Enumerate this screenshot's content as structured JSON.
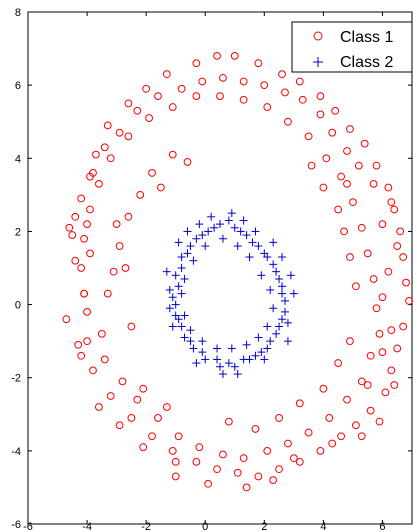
{
  "chart_data": {
    "type": "scatter",
    "title": "",
    "xlabel": "",
    "ylabel": "",
    "xlim": [
      -6,
      7
    ],
    "ylim": [
      -6,
      8
    ],
    "xticks": [
      "-6",
      "-4",
      "-2",
      "0",
      "2",
      "4",
      "6"
    ],
    "yticks": [
      "-6",
      "-4",
      "-2",
      "0",
      "2",
      "4",
      "6",
      "8"
    ],
    "grid": false,
    "legend_position": "top-right",
    "series": [
      {
        "name": "Class 1",
        "marker": "circle",
        "color": "#ff0000",
        "points": [
          [
            -4.1,
            0.3
          ],
          [
            -3.9,
            1.4
          ],
          [
            -4.6,
            2.1
          ],
          [
            -4.4,
            2.4
          ],
          [
            -3.9,
            3.5
          ],
          [
            -3.7,
            4.1
          ],
          [
            -3.3,
            4.9
          ],
          [
            -2.6,
            5.5
          ],
          [
            -2.0,
            5.9
          ],
          [
            -1.3,
            6.3
          ],
          [
            -0.3,
            6.6
          ],
          [
            0.4,
            6.8
          ],
          [
            1.0,
            6.8
          ],
          [
            1.8,
            6.6
          ],
          [
            2.6,
            6.3
          ],
          [
            3.2,
            6.1
          ],
          [
            3.9,
            5.7
          ],
          [
            4.4,
            5.3
          ],
          [
            4.9,
            4.8
          ],
          [
            5.4,
            4.4
          ],
          [
            5.8,
            3.8
          ],
          [
            6.2,
            3.2
          ],
          [
            6.4,
            2.6
          ],
          [
            6.6,
            2.0
          ],
          [
            6.7,
            1.3
          ],
          [
            6.8,
            0.6
          ],
          [
            6.9,
            0.1
          ],
          [
            6.7,
            -0.6
          ],
          [
            6.5,
            -1.2
          ],
          [
            6.3,
            -1.8
          ],
          [
            6.1,
            -2.4
          ],
          [
            5.6,
            -2.9
          ],
          [
            5.1,
            -3.3
          ],
          [
            4.6,
            -3.6
          ],
          [
            3.9,
            -4.0
          ],
          [
            3.2,
            -4.3
          ],
          [
            2.5,
            -4.5
          ],
          [
            1.8,
            -4.7
          ],
          [
            1.1,
            -4.6
          ],
          [
            0.4,
            -4.5
          ],
          [
            -0.3,
            -4.3
          ],
          [
            -1.1,
            -4.0
          ],
          [
            -1.8,
            -3.6
          ],
          [
            -2.5,
            -3.1
          ],
          [
            -3.2,
            -2.5
          ],
          [
            -3.8,
            -1.8
          ],
          [
            -4.3,
            -1.1
          ],
          [
            -4.7,
            -0.4
          ],
          [
            -4.2,
            -1.4
          ],
          [
            -3.6,
            -2.8
          ],
          [
            -2.9,
            -3.3
          ],
          [
            -2.1,
            -3.9
          ],
          [
            -1.0,
            -4.7
          ],
          [
            0.1,
            -4.9
          ],
          [
            1.4,
            -5.0
          ],
          [
            2.3,
            -4.8
          ],
          [
            3.0,
            -4.2
          ],
          [
            4.3,
            -3.8
          ],
          [
            5.3,
            -3.6
          ],
          [
            5.9,
            -3.2
          ],
          [
            6.4,
            -2.2
          ],
          [
            6.0,
            -1.3
          ],
          [
            6.3,
            -0.7
          ],
          [
            6.0,
            0.2
          ],
          [
            6.2,
            0.9
          ],
          [
            6.5,
            1.6
          ],
          [
            6.0,
            2.2
          ],
          [
            6.3,
            2.8
          ],
          [
            5.7,
            3.3
          ],
          [
            5.2,
            3.8
          ],
          [
            4.8,
            4.2
          ],
          [
            4.3,
            4.7
          ],
          [
            3.9,
            5.2
          ],
          [
            3.3,
            5.6
          ],
          [
            2.7,
            5.8
          ],
          [
            2.0,
            6.0
          ],
          [
            1.3,
            6.1
          ],
          [
            0.6,
            6.2
          ],
          [
            -0.1,
            6.1
          ],
          [
            -0.8,
            5.9
          ],
          [
            -1.6,
            5.7
          ],
          [
            -2.3,
            5.3
          ],
          [
            -2.9,
            4.7
          ],
          [
            -3.4,
            4.3
          ],
          [
            -3.8,
            3.6
          ],
          [
            -4.2,
            2.9
          ],
          [
            -4.5,
            1.9
          ],
          [
            -4.4,
            1.2
          ],
          [
            -4.0,
            -0.2
          ],
          [
            -4.0,
            -1.0
          ],
          [
            -3.4,
            -1.5
          ],
          [
            -2.8,
            -2.1
          ],
          [
            -2.3,
            -2.6
          ],
          [
            -1.6,
            -3.1
          ],
          [
            -0.9,
            -3.6
          ],
          [
            -0.2,
            -3.9
          ],
          [
            0.6,
            -4.1
          ],
          [
            1.3,
            -4.2
          ],
          [
            2.1,
            -4.0
          ],
          [
            2.8,
            -3.8
          ],
          [
            3.5,
            -3.5
          ],
          [
            4.2,
            -3.1
          ],
          [
            4.8,
            -2.6
          ],
          [
            5.3,
            -2.1
          ],
          [
            5.6,
            -1.4
          ],
          [
            5.9,
            -0.8
          ],
          [
            5.8,
            -0.1
          ],
          [
            5.7,
            0.7
          ],
          [
            5.5,
            1.4
          ],
          [
            5.3,
            2.1
          ],
          [
            5.0,
            2.8
          ],
          [
            4.6,
            3.5
          ],
          [
            4.1,
            4.0
          ],
          [
            3.5,
            4.6
          ],
          [
            2.8,
            5.0
          ],
          [
            2.1,
            5.4
          ],
          [
            1.3,
            5.6
          ],
          [
            0.5,
            5.7
          ],
          [
            -0.3,
            5.7
          ],
          [
            -1.1,
            5.4
          ],
          [
            -1.9,
            5.1
          ],
          [
            -2.6,
            4.6
          ],
          [
            -3.2,
            4.0
          ],
          [
            -3.6,
            3.3
          ],
          [
            -3.9,
            2.6
          ],
          [
            -4.1,
            1.8
          ],
          [
            -4.2,
            1.0
          ],
          [
            -4.1,
            0.3
          ],
          [
            -3.3,
            0.3
          ],
          [
            -3.1,
            0.9
          ],
          [
            -2.9,
            1.6
          ],
          [
            -2.6,
            2.4
          ],
          [
            -2.2,
            3.0
          ],
          [
            -1.8,
            3.6
          ],
          [
            -1.1,
            4.1
          ],
          [
            -2.5,
            -0.6
          ],
          [
            -2.1,
            -2.3
          ],
          [
            -1.3,
            -2.8
          ],
          [
            4.0,
            -2.3
          ],
          [
            4.5,
            -1.6
          ],
          [
            4.9,
            -1.0
          ],
          [
            5.1,
            0.5
          ],
          [
            4.9,
            1.3
          ],
          [
            4.7,
            2.0
          ],
          [
            4.5,
            2.6
          ],
          [
            4.0,
            3.2
          ],
          [
            3.6,
            3.8
          ],
          [
            -2.7,
            1.0
          ],
          [
            -3.0,
            2.2
          ],
          [
            -0.6,
            3.9
          ],
          [
            0.8,
            -3.2
          ],
          [
            1.7,
            -3.4
          ],
          [
            2.5,
            -3.1
          ],
          [
            3.2,
            -2.7
          ],
          [
            -3.5,
            -0.8
          ],
          [
            -4.0,
            2.2
          ],
          [
            -1.5,
            3.2
          ],
          [
            4.8,
            3.3
          ],
          [
            5.5,
            -2.2
          ],
          [
            -1.0,
            -4.3
          ]
        ]
      },
      {
        "name": "Class 2",
        "marker": "plus",
        "color": "#0000cc",
        "points": [
          [
            -1.0,
            0.0
          ],
          [
            -0.9,
            0.5
          ],
          [
            -0.8,
            1.0
          ],
          [
            -0.6,
            1.4
          ],
          [
            -0.3,
            1.8
          ],
          [
            0.1,
            2.0
          ],
          [
            0.5,
            2.2
          ],
          [
            1.0,
            2.1
          ],
          [
            1.4,
            1.9
          ],
          [
            1.8,
            1.6
          ],
          [
            2.1,
            1.3
          ],
          [
            2.4,
            0.9
          ],
          [
            2.6,
            0.5
          ],
          [
            2.7,
            0.1
          ],
          [
            2.6,
            -0.4
          ],
          [
            2.4,
            -0.8
          ],
          [
            2.1,
            -1.2
          ],
          [
            1.7,
            -1.4
          ],
          [
            1.3,
            -1.5
          ],
          [
            0.8,
            -1.6
          ],
          [
            0.4,
            -1.5
          ],
          [
            -0.1,
            -1.3
          ],
          [
            -0.5,
            -1.0
          ],
          [
            -0.8,
            -0.6
          ],
          [
            -1.0,
            -0.3
          ],
          [
            -1.1,
            0.2
          ],
          [
            -1.0,
            0.8
          ],
          [
            -0.8,
            1.3
          ],
          [
            -0.5,
            1.6
          ],
          [
            -0.1,
            1.9
          ],
          [
            0.3,
            2.1
          ],
          [
            0.8,
            2.3
          ],
          [
            1.2,
            2.0
          ],
          [
            1.6,
            1.7
          ],
          [
            2.0,
            1.4
          ],
          [
            2.3,
            1.1
          ],
          [
            2.5,
            0.7
          ],
          [
            2.6,
            0.3
          ],
          [
            2.7,
            -0.2
          ],
          [
            2.5,
            -0.6
          ],
          [
            2.2,
            -1.0
          ],
          [
            1.9,
            -1.3
          ],
          [
            1.5,
            -1.5
          ],
          [
            1.0,
            -1.7
          ],
          [
            0.5,
            -1.7
          ],
          [
            0.0,
            -1.5
          ],
          [
            -0.4,
            -1.2
          ],
          [
            -0.7,
            -0.9
          ],
          [
            -0.9,
            -0.4
          ],
          [
            -1.2,
            0.4
          ],
          [
            -0.7,
            0.7
          ],
          [
            -0.4,
            1.2
          ],
          [
            0.0,
            1.6
          ],
          [
            0.6,
            1.8
          ],
          [
            1.1,
            1.6
          ],
          [
            1.5,
            1.3
          ],
          [
            1.9,
            0.8
          ],
          [
            2.2,
            0.4
          ],
          [
            2.3,
            -0.1
          ],
          [
            2.1,
            -0.6
          ],
          [
            1.8,
            -0.9
          ],
          [
            1.4,
            -1.1
          ],
          [
            0.9,
            -1.2
          ],
          [
            0.4,
            -1.2
          ],
          [
            -0.1,
            -1.0
          ],
          [
            -0.5,
            -0.7
          ],
          [
            -0.7,
            -0.3
          ],
          [
            -0.8,
            0.3
          ],
          [
            2.9,
            0.8
          ],
          [
            2.8,
            -0.5
          ],
          [
            3.0,
            0.3
          ],
          [
            -1.3,
            0.9
          ],
          [
            -1.1,
            -0.6
          ],
          [
            0.2,
            2.4
          ],
          [
            1.3,
            2.3
          ],
          [
            0.6,
            -1.9
          ],
          [
            2.0,
            -1.5
          ],
          [
            -0.3,
            -1.6
          ],
          [
            1.7,
            2.0
          ],
          [
            -0.9,
            1.7
          ],
          [
            2.3,
            1.7
          ],
          [
            2.6,
            1.3
          ],
          [
            -1.2,
            -0.1
          ],
          [
            2.8,
            -1.0
          ],
          [
            -0.6,
            2.0
          ],
          [
            0.9,
            2.5
          ],
          [
            1.1,
            -1.9
          ],
          [
            -0.2,
            2.2
          ]
        ]
      }
    ]
  }
}
